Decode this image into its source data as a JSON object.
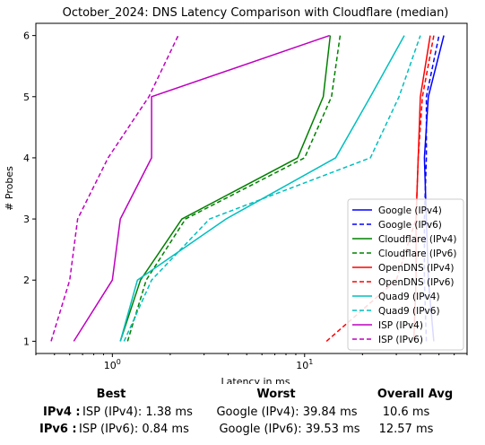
{
  "chart_data": {
    "type": "line",
    "title": "October_2024: DNS Latency Comparison with Cloudflare (median)",
    "xlabel": "Latency in ms",
    "ylabel": "# Probes",
    "xscale": "log",
    "xlim": [
      0.4,
      70
    ],
    "ylim": [
      0.8,
      6.2
    ],
    "xticks": [
      1,
      10
    ],
    "xtick_labels": [
      "10^0",
      "10^1"
    ],
    "yticks": [
      1,
      2,
      3,
      4,
      5,
      6
    ],
    "grid": false,
    "legend_position": "lower-right",
    "series": [
      {
        "name": "Google (IPv4)",
        "color": "#0000ff",
        "dash": "solid",
        "x": [
          47,
          44,
          43,
          42,
          44,
          53
        ],
        "y": [
          1,
          2,
          3,
          4,
          5,
          6
        ]
      },
      {
        "name": "Google (IPv6)",
        "color": "#0000ff",
        "dash": "dashed",
        "x": [
          43,
          42,
          42,
          43,
          43,
          50
        ],
        "y": [
          1,
          2,
          3,
          4,
          5,
          6
        ]
      },
      {
        "name": "Cloudflare (IPv4)",
        "color": "#008000",
        "dash": "solid",
        "x": [
          1.1,
          1.4,
          2.3,
          9.2,
          12.5,
          13.6
        ],
        "y": [
          1,
          2,
          3,
          4,
          5,
          6
        ]
      },
      {
        "name": "Cloudflare (IPv6)",
        "color": "#008000",
        "dash": "dashed",
        "x": [
          1.2,
          1.5,
          2.4,
          10,
          13.8,
          15.3
        ],
        "y": [
          1,
          2,
          3,
          4,
          5,
          6
        ]
      },
      {
        "name": "OpenDNS (IPv4)",
        "color": "#ff0000",
        "dash": "solid",
        "x": [
          37,
          38,
          38,
          39,
          40,
          45
        ],
        "y": [
          1,
          2,
          3,
          4,
          5,
          6
        ]
      },
      {
        "name": "OpenDNS (IPv6)",
        "color": "#ff0000",
        "dash": "dashed",
        "x": [
          13,
          30,
          38,
          39,
          41,
          47
        ],
        "y": [
          1,
          2,
          3,
          4,
          5,
          6
        ]
      },
      {
        "name": "Quad9 (IPv4)",
        "color": "#00bfbf",
        "dash": "solid",
        "x": [
          1.1,
          1.35,
          3.9,
          14.5,
          22,
          33
        ],
        "y": [
          1,
          2,
          3,
          4,
          5,
          6
        ]
      },
      {
        "name": "Quad9 (IPv6)",
        "color": "#00bfbf",
        "dash": "dashed",
        "x": [
          1.15,
          1.6,
          3.2,
          22,
          31,
          40
        ],
        "y": [
          1,
          2,
          3,
          4,
          5,
          6
        ]
      },
      {
        "name": "ISP (IPv4)",
        "color": "#bf00bf",
        "dash": "solid",
        "x": [
          0.63,
          1.0,
          1.1,
          1.6,
          1.6,
          13.5
        ],
        "y": [
          1,
          2,
          3,
          4,
          5,
          6
        ]
      },
      {
        "name": "ISP (IPv6)",
        "color": "#bf00bf",
        "dash": "dashed",
        "x": [
          0.48,
          0.6,
          0.66,
          0.95,
          1.55,
          2.2
        ],
        "y": [
          1,
          2,
          3,
          4,
          5,
          6
        ]
      }
    ]
  },
  "stats": {
    "best_header": "Best",
    "worst_header": "Worst",
    "avg_header": "Overall Avg",
    "ipv4_label": "IPv4 :",
    "ipv4_best": "ISP (IPv4): 1.38 ms",
    "ipv4_worst": "Google (IPv4): 39.84 ms",
    "ipv4_avg": "10.6 ms",
    "ipv6_label": "IPv6 :",
    "ipv6_best": "ISP (IPv6): 0.84 ms",
    "ipv6_worst": "Google (IPv6): 39.53 ms",
    "ipv6_avg": "12.57 ms"
  }
}
